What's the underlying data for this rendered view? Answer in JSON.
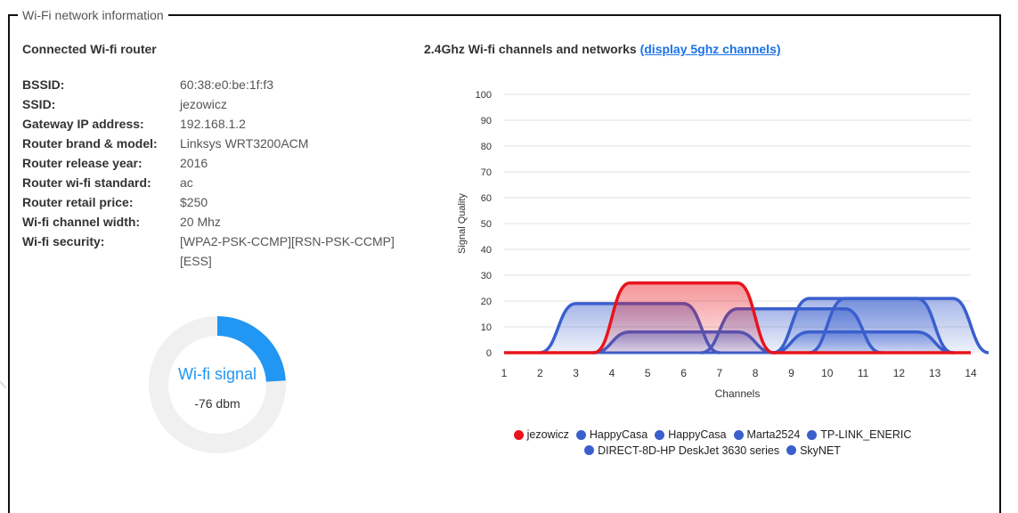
{
  "panel": {
    "legend": "Wi-Fi network information"
  },
  "router": {
    "title": "Connected Wi-fi router",
    "rows": [
      {
        "key": "BSSID:",
        "value": "60:38:e0:be:1f:f3"
      },
      {
        "key": "SSID:",
        "value": "jezowicz"
      },
      {
        "key": "Gateway IP address:",
        "value": "192.168.1.2"
      },
      {
        "key": "Router brand & model:",
        "value": "Linksys WRT3200ACM"
      },
      {
        "key": "Router release year:",
        "value": "2016"
      },
      {
        "key": "Router wi-fi standard:",
        "value": "ac"
      },
      {
        "key": "Router retail price:",
        "value": "$250"
      },
      {
        "key": "Wi-fi channel width:",
        "value": "20 Mhz"
      },
      {
        "key": "Wi-fi security:",
        "value": "[WPA2-PSK-CCMP][RSN-PSK-CCMP][ESS]"
      }
    ]
  },
  "signal": {
    "label": "Wi-fi signal",
    "value": "-76 dbm",
    "fraction": 0.24,
    "color": "#2196f3",
    "track_color": "#f0f0f0"
  },
  "channels": {
    "title": "2.4Ghz Wi-fi channels and networks",
    "link": "(display 5ghz channels)"
  },
  "chart_data": {
    "type": "area",
    "xlabel": "Channels",
    "ylabel": "Signal Quality",
    "xlim": [
      1,
      14
    ],
    "ylim": [
      0,
      100
    ],
    "x_ticks": [
      1,
      2,
      3,
      4,
      5,
      6,
      7,
      8,
      9,
      10,
      11,
      12,
      13,
      14
    ],
    "y_ticks": [
      0,
      10,
      20,
      30,
      40,
      50,
      60,
      70,
      80,
      90,
      100
    ],
    "grid": true,
    "legend_position": "bottom",
    "series": [
      {
        "name": "jezowicz",
        "center": 6,
        "quality": 27,
        "color": "#e8141c"
      },
      {
        "name": "HappyCasa",
        "center": 6,
        "quality": 8,
        "color": "#3a5fcd"
      },
      {
        "name": "HappyCasa",
        "center": 11,
        "quality": 8,
        "color": "#3a5fcd"
      },
      {
        "name": "Marta2524",
        "center": 4.5,
        "quality": 19,
        "color": "#3a5fcd"
      },
      {
        "name": "TP-LINK_ENERIC",
        "center": 9,
        "quality": 17,
        "color": "#3a5fcd"
      },
      {
        "name": "DIRECT-8D-HP DeskJet 3630 series",
        "center": 11,
        "quality": 21,
        "color": "#3a5fcd"
      },
      {
        "name": "SkyNET",
        "center": 12,
        "quality": 21,
        "color": "#3a5fcd"
      }
    ]
  }
}
